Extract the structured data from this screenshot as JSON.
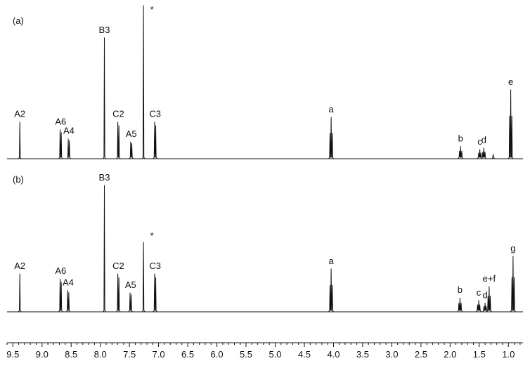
{
  "chart_data": {
    "type": "line",
    "x_axis": {
      "range": [
        9.6,
        0.75
      ],
      "reversed": true,
      "major_ticks": [
        "9.5",
        "9.0",
        "8.5",
        "8.0",
        "7.5",
        "7.0",
        "6.5",
        "6.0",
        "5.5",
        "5.0",
        "4.5",
        "4.0",
        "3.5",
        "3.0",
        "2.5",
        "2.0",
        "1.5",
        "1.0"
      ],
      "minor_step": 0.1
    },
    "grid": false,
    "panels": [
      {
        "label": "(a)",
        "peaks": [
          {
            "name": "A2",
            "ppm": 9.38,
            "height": 0.24,
            "mult": 1
          },
          {
            "name": "A6",
            "ppm": 8.68,
            "height": 0.19,
            "mult": 2
          },
          {
            "name": "A4",
            "ppm": 8.54,
            "height": 0.13,
            "mult": 2
          },
          {
            "name": "B3",
            "ppm": 7.93,
            "height": 0.79,
            "mult": 1
          },
          {
            "name": "C2",
            "ppm": 7.69,
            "height": 0.24,
            "mult": 2
          },
          {
            "name": "A5",
            "ppm": 7.47,
            "height": 0.11,
            "mult": 2
          },
          {
            "name": "*",
            "ppm": 7.26,
            "height": 1.0,
            "mult": 1
          },
          {
            "name": "C3",
            "ppm": 7.06,
            "height": 0.24,
            "mult": 2
          },
          {
            "name": "a",
            "ppm": 4.04,
            "height": 0.27,
            "mult": 3
          },
          {
            "name": "b",
            "ppm": 1.82,
            "height": 0.08,
            "mult": 3
          },
          {
            "name": "c",
            "ppm": 1.49,
            "height": 0.06,
            "mult": 3
          },
          {
            "name": "d",
            "ppm": 1.42,
            "height": 0.07,
            "mult": 3
          },
          {
            "name": "",
            "ppm": 1.26,
            "height": 0.03,
            "mult": 1
          },
          {
            "name": "e",
            "ppm": 0.96,
            "height": 0.45,
            "mult": 3
          }
        ]
      },
      {
        "label": "(b)",
        "peaks": [
          {
            "name": "A2",
            "ppm": 9.38,
            "height": 0.3,
            "mult": 1
          },
          {
            "name": "A6",
            "ppm": 8.68,
            "height": 0.26,
            "mult": 2
          },
          {
            "name": "A4",
            "ppm": 8.55,
            "height": 0.17,
            "mult": 2
          },
          {
            "name": "B3",
            "ppm": 7.93,
            "height": 1.0,
            "mult": 1
          },
          {
            "name": "C2",
            "ppm": 7.69,
            "height": 0.3,
            "mult": 2
          },
          {
            "name": "A5",
            "ppm": 7.48,
            "height": 0.15,
            "mult": 2
          },
          {
            "name": "*",
            "ppm": 7.26,
            "height": 0.55,
            "mult": 1
          },
          {
            "name": "C3",
            "ppm": 7.06,
            "height": 0.3,
            "mult": 2
          },
          {
            "name": "a",
            "ppm": 4.04,
            "height": 0.34,
            "mult": 3
          },
          {
            "name": "b",
            "ppm": 1.83,
            "height": 0.11,
            "mult": 3
          },
          {
            "name": "c",
            "ppm": 1.51,
            "height": 0.09,
            "mult": 3
          },
          {
            "name": "d",
            "ppm": 1.4,
            "height": 0.07,
            "mult": 3
          },
          {
            "name": "e+f",
            "ppm": 1.33,
            "height": 0.2,
            "mult": 3
          },
          {
            "name": "g",
            "ppm": 0.92,
            "height": 0.44,
            "mult": 3
          }
        ]
      }
    ]
  }
}
